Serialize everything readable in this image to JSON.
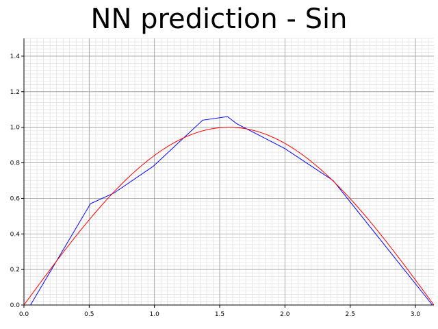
{
  "chart_data": {
    "type": "line",
    "title": "NN prediction - Sin",
    "xlabel": "",
    "ylabel": "",
    "xlim": [
      0,
      3.1416
    ],
    "ylim": [
      0,
      1.5
    ],
    "grid": true,
    "x_ticks": [
      "0.0",
      "0.5",
      "1.0",
      "1.5",
      "2.0",
      "2.5",
      "3.0"
    ],
    "y_ticks": [
      "0.0",
      "0.2",
      "0.4",
      "0.6",
      "0.8",
      "1.0",
      "1.2",
      "1.4"
    ],
    "series": [
      {
        "color": "#0000ff",
        "x": [
          0.05,
          0.51,
          0.69,
          0.99,
          1.37,
          1.56,
          1.63,
          2.0,
          2.37,
          3.13
        ],
        "y": [
          0.0,
          0.57,
          0.63,
          0.78,
          1.04,
          1.06,
          1.02,
          0.88,
          0.7,
          0.0
        ]
      },
      {
        "color": "#ff0000",
        "function": "sin",
        "x_range": [
          0,
          3.1416
        ]
      }
    ]
  }
}
